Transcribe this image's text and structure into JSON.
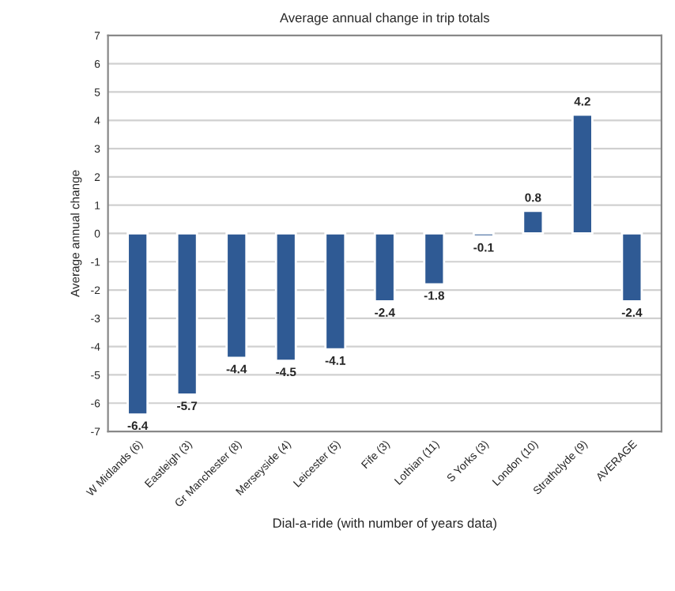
{
  "chart_data": {
    "type": "bar",
    "title": "Average annual change in trip totals",
    "xlabel": "Dial-a-ride (with number of years data)",
    "ylabel": "Average annual change",
    "categories": [
      "W Midlands (6)",
      "Eastleigh (3)",
      "Gr Manchester (8)",
      "Merseyside (4)",
      "Leicester (5)",
      "Fife (3)",
      "Lothian (11)",
      "S Yorks (3)",
      "London (10)",
      "Strathclyde (9)",
      "AVERAGE"
    ],
    "values": [
      -6.4,
      -5.7,
      -4.4,
      -4.5,
      -4.1,
      -2.4,
      -1.8,
      -0.1,
      0.8,
      4.2,
      -2.4
    ],
    "color": "#2f5a94",
    "ylim": [
      -7,
      7
    ],
    "yticks": [
      -7,
      -6,
      -5,
      -4,
      -3,
      -2,
      -1,
      0,
      1,
      2,
      3,
      4,
      5,
      6,
      7
    ],
    "grid": "y",
    "data_labels": true
  }
}
